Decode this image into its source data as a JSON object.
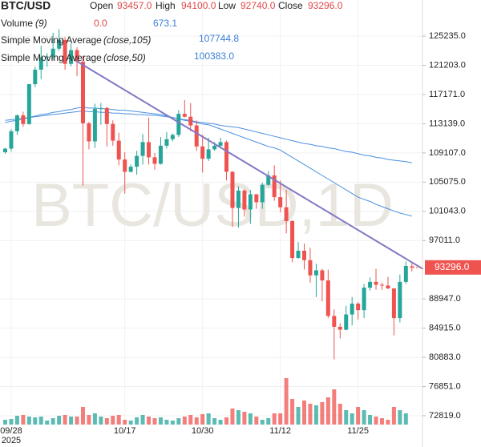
{
  "chart_data": {
    "type": "candlestick",
    "title": "BTC/USD",
    "watermark": "BTC/USD,1D",
    "legend": {
      "open_label": "Open",
      "open": "93457.0",
      "high_label": "High",
      "high": "94100.0",
      "low_label": "Low",
      "low": "92740.0",
      "close_label": "Close",
      "close": "93296.0",
      "volume_label": "Volume",
      "volume_params": "(9)",
      "volume": "0.0",
      "volume_ma": "673.1"
    },
    "categories": [
      null,
      "09/28",
      null,
      null,
      null,
      null,
      null,
      null,
      null,
      null,
      null,
      null,
      null,
      null,
      null,
      null,
      null,
      null,
      null,
      null,
      "10/17",
      null,
      null,
      null,
      null,
      null,
      null,
      null,
      null,
      null,
      null,
      null,
      null,
      "10/30",
      null,
      null,
      null,
      null,
      null,
      null,
      null,
      null,
      null,
      null,
      null,
      null,
      "11/12",
      null,
      null,
      null,
      null,
      null,
      null,
      null,
      null,
      null,
      null,
      null,
      null,
      "11/25",
      null,
      null,
      null,
      null,
      null,
      null,
      null,
      null,
      null
    ],
    "x_year_label": "2025",
    "open": [
      109200,
      109700,
      112100,
      114300,
      113100,
      118600,
      120600,
      122300,
      122400,
      123500,
      124700,
      121400,
      123300,
      121700,
      113200,
      110700,
      115200,
      115300,
      113100,
      110800,
      108200,
      106500,
      107200,
      108700,
      110600,
      108500,
      107600,
      110100,
      111000,
      111600,
      114500,
      114100,
      112900,
      110000,
      108300,
      109600,
      110100,
      110600,
      106500,
      101500,
      103900,
      101300,
      103400,
      102300,
      104700,
      106000,
      103000,
      101600,
      99700,
      94600,
      95600,
      94300,
      92200,
      92900,
      91500,
      86600,
      85100,
      84700,
      86800,
      88300,
      87400,
      90500,
      91300,
      90900,
      90800,
      90400,
      86300,
      91300,
      93457
    ],
    "high": [
      109800,
      112400,
      114400,
      114800,
      118600,
      121000,
      123900,
      122900,
      125700,
      126200,
      125100,
      124200,
      123700,
      122500,
      113400,
      115900,
      116000,
      115500,
      113600,
      111900,
      109200,
      107500,
      109400,
      111700,
      114000,
      109100,
      111300,
      112000,
      111800,
      115000,
      116400,
      116000,
      113600,
      111600,
      111200,
      110600,
      111200,
      110800,
      106600,
      104500,
      104100,
      104000,
      103400,
      105000,
      106600,
      107400,
      105300,
      104000,
      99800,
      96800,
      96600,
      96000,
      93800,
      93100,
      93000,
      87500,
      85600,
      88000,
      89200,
      88500,
      91000,
      91900,
      93100,
      91200,
      92000,
      90400,
      92300,
      94100,
      94100
    ],
    "low": [
      109000,
      109300,
      111600,
      112700,
      113000,
      118200,
      119300,
      121000,
      122000,
      123200,
      120600,
      121100,
      119700,
      104600,
      109600,
      109800,
      113000,
      110000,
      110100,
      107400,
      103500,
      106400,
      106100,
      107500,
      107500,
      106800,
      107500,
      109700,
      110700,
      111300,
      114000,
      112100,
      109400,
      106400,
      108000,
      109400,
      109800,
      105300,
      98900,
      98800,
      100300,
      99300,
      101400,
      101400,
      104500,
      102500,
      100900,
      98000,
      94000,
      94500,
      93000,
      91200,
      89200,
      88600,
      86300,
      80600,
      83500,
      84600,
      85300,
      86100,
      86300,
      90100,
      90200,
      90200,
      90300,
      83900,
      85700,
      91000,
      92740
    ],
    "close": [
      109700,
      112100,
      114300,
      113100,
      118600,
      120600,
      122300,
      122400,
      123500,
      124700,
      121400,
      123300,
      121700,
      113200,
      110700,
      115200,
      115300,
      113100,
      110800,
      108200,
      106500,
      107200,
      108700,
      110600,
      108500,
      107600,
      110100,
      111000,
      111600,
      114500,
      114100,
      112900,
      110000,
      108300,
      109600,
      110100,
      110600,
      106500,
      101500,
      103900,
      101300,
      103400,
      102300,
      104700,
      106000,
      103000,
      101600,
      99700,
      94600,
      95600,
      94300,
      92200,
      92900,
      91500,
      86600,
      85100,
      84700,
      86800,
      88300,
      87400,
      90500,
      91300,
      90900,
      90800,
      90400,
      86300,
      91300,
      93500,
      93296
    ],
    "last_price_label": "93296.0",
    "volume": [
      300,
      350,
      550,
      600,
      500,
      450,
      500,
      250,
      400,
      550,
      600,
      500,
      500,
      1100,
      600,
      700,
      500,
      400,
      550,
      600,
      300,
      250,
      450,
      600,
      500,
      400,
      450,
      300,
      250,
      400,
      500,
      600,
      450,
      650,
      700,
      400,
      300,
      450,
      1000,
      900,
      800,
      700,
      500,
      300,
      400,
      700,
      700,
      2900,
      1600,
      1100,
      1500,
      1300,
      1200,
      1400,
      1700,
      2200,
      1300,
      900,
      700,
      1100,
      900,
      600,
      500,
      400,
      300,
      1100,
      900,
      700,
      0
    ],
    "volume_ylim": [
      0,
      3000
    ],
    "series": [
      {
        "name": "Simple Moving Average",
        "params": "(close,105)",
        "value_label": "107744.8",
        "color": "#4a8fe0",
        "values": [
          113600,
          113700,
          113800,
          113900,
          114000,
          114100,
          114200,
          114300,
          114400,
          114500,
          114600,
          114700,
          114800,
          114900,
          114800,
          114800,
          114700,
          114700,
          114600,
          114600,
          114500,
          114500,
          114400,
          114400,
          114300,
          114300,
          114200,
          114100,
          114000,
          113800,
          113700,
          113600,
          113400,
          113300,
          113200,
          113100,
          112900,
          112800,
          112700,
          112600,
          112400,
          112200,
          112000,
          111800,
          111600,
          111400,
          111200,
          111000,
          110800,
          110600,
          110400,
          110300,
          110100,
          110000,
          109800,
          109700,
          109500,
          109300,
          109200,
          109000,
          108800,
          108700,
          108500,
          108400,
          108200,
          108100,
          108000,
          107900,
          107744.8
        ]
      },
      {
        "name": "Simple Moving Average",
        "params": "(close,50)",
        "value_label": "100383.0",
        "color": "#4a8fe0",
        "values": [
          113300,
          113500,
          113600,
          113800,
          114000,
          114200,
          114400,
          114500,
          114700,
          114800,
          115000,
          115100,
          115300,
          115400,
          115300,
          115300,
          115200,
          115200,
          115100,
          115000,
          115000,
          114900,
          114800,
          114700,
          114600,
          114500,
          114400,
          114200,
          114000,
          113800,
          113600,
          113500,
          113300,
          113100,
          113000,
          112700,
          112400,
          112100,
          111800,
          111500,
          111200,
          110900,
          110600,
          110300,
          110000,
          109800,
          109500,
          109000,
          108500,
          108000,
          107500,
          107000,
          106500,
          106000,
          105500,
          105000,
          104500,
          104000,
          103500,
          103000,
          102700,
          102400,
          102000,
          101700,
          101400,
          101100,
          100800,
          100600,
          100383
        ]
      }
    ],
    "up_color": "#26a69a",
    "down_color": "#ef5350",
    "ylim": [
      71600,
      130220
    ],
    "yticks": [
      {
        "value": 72819,
        "label": "72819.0"
      },
      {
        "value": 76851,
        "label": "76851.0"
      },
      {
        "value": 80883,
        "label": "80883.0"
      },
      {
        "value": 84915,
        "label": "84915.0"
      },
      {
        "value": 88947,
        "label": "88947.0"
      },
      {
        "value": 97011,
        "label": "97011.0"
      },
      {
        "value": 101043,
        "label": "101043.0"
      },
      {
        "value": 105075,
        "label": "105075.0"
      },
      {
        "value": 109107,
        "label": "109107.0"
      },
      {
        "value": 113139,
        "label": "113139.0"
      },
      {
        "value": 117171,
        "label": "117171.0"
      },
      {
        "value": 121203,
        "label": "121203.0"
      },
      {
        "value": 125235,
        "label": "125235.0"
      }
    ],
    "grid": true
  }
}
